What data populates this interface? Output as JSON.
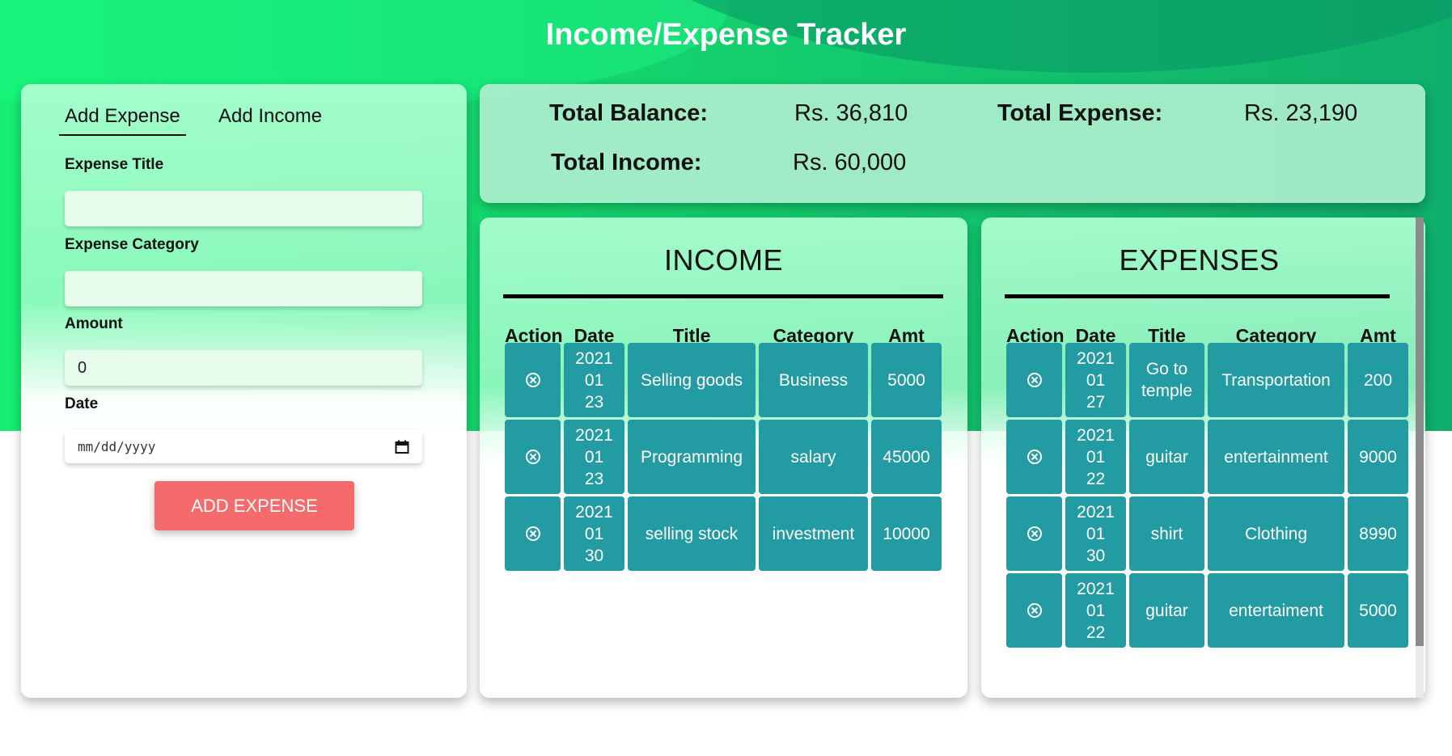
{
  "app": {
    "title": "Income/Expense Tracker"
  },
  "form": {
    "tabs": [
      {
        "label": "Add Expense",
        "active": true
      },
      {
        "label": "Add Income",
        "active": false
      }
    ],
    "fields": {
      "title_label": "Expense Title",
      "title_value": "",
      "category_label": "Expense Category",
      "category_value": "",
      "amount_label": "Amount",
      "amount_value": "0",
      "date_label": "Date",
      "date_placeholder": "mm/dd/yyyy"
    },
    "submit_label": "ADD EXPENSE"
  },
  "summary": {
    "balance_label": "Total Balance:",
    "balance_value": "Rs. 36,810",
    "expense_label": "Total Expense:",
    "expense_value": "Rs. 23,190",
    "income_label": "Total Income:",
    "income_value": "Rs. 60,000"
  },
  "income": {
    "heading": "INCOME",
    "columns": [
      "Action",
      "Date",
      "Title",
      "Category",
      "Amt"
    ],
    "rows": [
      {
        "date": [
          "2021",
          "01",
          "23"
        ],
        "title": "Selling goods",
        "category": "Business",
        "amt": "5000"
      },
      {
        "date": [
          "2021",
          "01",
          "23"
        ],
        "title": "Programming",
        "category": "salary",
        "amt": "45000"
      },
      {
        "date": [
          "2021",
          "01",
          "30"
        ],
        "title": "selling stock",
        "category": "investment",
        "amt": "10000"
      }
    ]
  },
  "expenses": {
    "heading": "EXPENSES",
    "columns": [
      "Action",
      "Date",
      "Title",
      "Category",
      "Amt"
    ],
    "rows": [
      {
        "date": [
          "2021",
          "01",
          "27"
        ],
        "title": "Go to temple",
        "category": "Transportation",
        "amt": "200"
      },
      {
        "date": [
          "2021",
          "01",
          "22"
        ],
        "title": "guitar",
        "category": "entertainment",
        "amt": "9000"
      },
      {
        "date": [
          "2021",
          "01",
          "30"
        ],
        "title": "shirt",
        "category": "Clothing",
        "amt": "8990"
      },
      {
        "date": [
          "2021",
          "01",
          "22"
        ],
        "title": "guitar",
        "category": "entertaiment",
        "amt": "5000"
      }
    ]
  },
  "colors": {
    "cell_bg": "#229ba3",
    "button": "#f56b6b",
    "hero_start": "#16ee72",
    "hero_end": "#0fae6c"
  }
}
